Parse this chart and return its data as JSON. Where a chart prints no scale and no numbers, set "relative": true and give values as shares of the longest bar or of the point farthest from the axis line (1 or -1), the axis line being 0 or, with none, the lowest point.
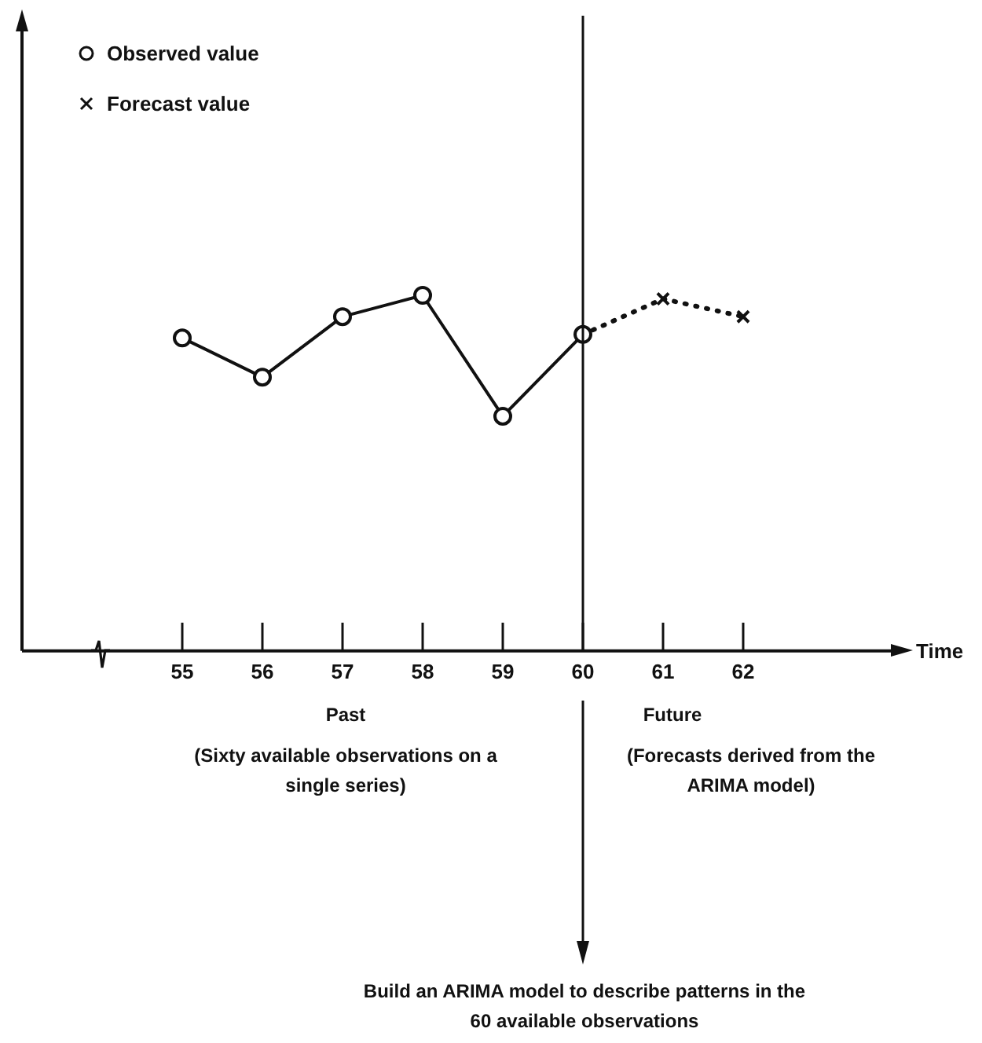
{
  "chart_data": {
    "type": "line",
    "relative": true,
    "xlabel": "Time",
    "xlim": [
      53,
      64
    ],
    "xticks": [
      55,
      56,
      57,
      58,
      59,
      60,
      61,
      62
    ],
    "grid": false,
    "legend": "top left",
    "series": [
      {
        "name": "Observed value",
        "color": "#111111",
        "marker": "circle",
        "line_style": "solid",
        "x": [
          55,
          56,
          57,
          58,
          59,
          60
        ],
        "values": [
          0.88,
          0.77,
          0.94,
          1,
          0.66,
          0.89
        ]
      },
      {
        "name": "Forecast value",
        "color": "#111111",
        "marker": "cross",
        "line_style": "dotted",
        "x": [
          60,
          61,
          62
        ],
        "values": [
          0.89,
          0.99,
          0.94
        ]
      }
    ],
    "ref_lines": [
      {
        "axis": "x",
        "value": 60
      }
    ],
    "annotations": [
      "Past",
      "(Sixty available observations on a single series)",
      "Future",
      "(Forecasts derived from the ARIMA model)",
      "Build an ARIMA model to describe patterns in the 60 available observations"
    ]
  }
}
